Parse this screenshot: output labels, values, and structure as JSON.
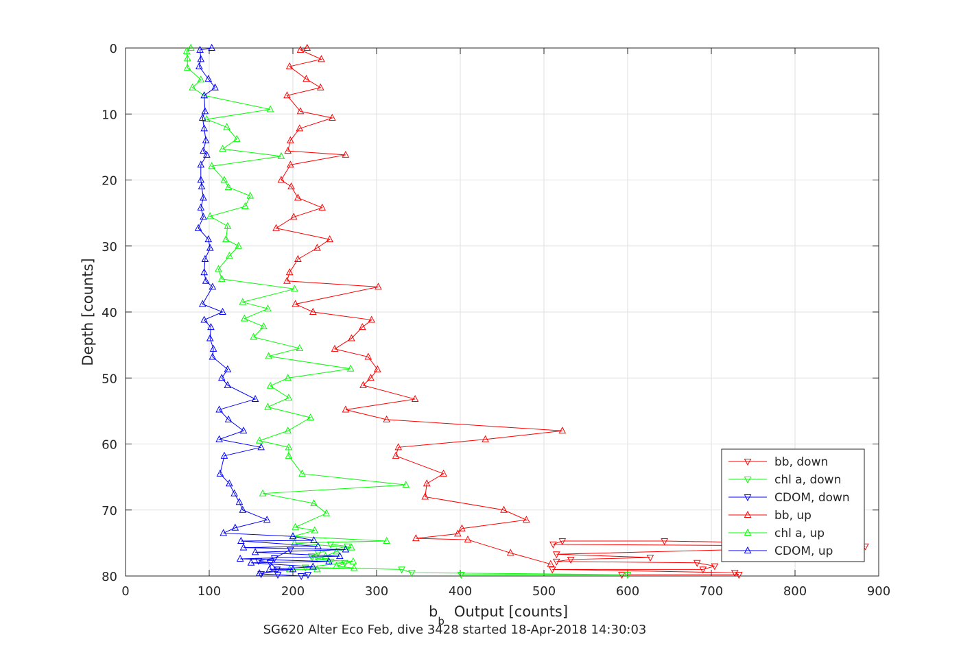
{
  "chart_data": {
    "type": "line",
    "xlabel_main": "b",
    "xlabel_sub": "b",
    "xlabel_rest": "Output [counts]",
    "ylabel": "Depth [counts]",
    "xlim": [
      0,
      900
    ],
    "ylim": [
      0,
      80
    ],
    "y_reversed": true,
    "grid": true,
    "legend_placement": "bottom-right",
    "xticks": [
      0,
      100,
      200,
      300,
      400,
      500,
      600,
      700,
      800,
      900
    ],
    "yticks": [
      0,
      10,
      20,
      30,
      40,
      50,
      60,
      70,
      80
    ],
    "series": [
      {
        "name": "bb, down",
        "color": "#ff0000",
        "marker": "triangle-down",
        "points": [
          [
            872,
            75.2
          ],
          [
            644,
            74.7
          ],
          [
            522,
            74.7
          ],
          [
            511,
            75.2
          ],
          [
            884,
            75.5
          ],
          [
            515,
            76.7
          ],
          [
            627,
            77.2
          ],
          [
            532,
            77.5
          ],
          [
            515,
            77.8
          ],
          [
            683,
            78.0
          ],
          [
            704,
            78.5
          ],
          [
            690,
            79.0
          ],
          [
            510,
            79.0
          ],
          [
            728,
            79.5
          ],
          [
            733,
            79.8
          ],
          [
            593,
            79.8
          ]
        ]
      },
      {
        "name": "chl a, down",
        "color": "#00ff00",
        "marker": "triangle-down",
        "points": [
          [
            245,
            75.2
          ],
          [
            265,
            75.5
          ],
          [
            230,
            76.5
          ],
          [
            222,
            77.0
          ],
          [
            245,
            77.8
          ],
          [
            262,
            78.0
          ],
          [
            215,
            78.7
          ],
          [
            330,
            79.0
          ],
          [
            342,
            79.5
          ],
          [
            600,
            79.8
          ],
          [
            401,
            79.8
          ]
        ]
      },
      {
        "name": "CDOM, down",
        "color": "#0000ff",
        "marker": "triangle-down",
        "points": [
          [
            197,
            76.0
          ],
          [
            178,
            77.3
          ],
          [
            159,
            77.7
          ],
          [
            173,
            78.0
          ],
          [
            181,
            79.0
          ],
          [
            162,
            79.7
          ],
          [
            182,
            79.8
          ],
          [
            210,
            80.0
          ],
          [
            218,
            79.8
          ]
        ]
      },
      {
        "name": "bb, up",
        "color": "#ff0000",
        "marker": "triangle-up",
        "points": [
          [
            217,
            0.0
          ],
          [
            209,
            0.3
          ],
          [
            234,
            1.7
          ],
          [
            196,
            2.8
          ],
          [
            216,
            4.7
          ],
          [
            233,
            6.0
          ],
          [
            193,
            7.2
          ],
          [
            209,
            9.6
          ],
          [
            247,
            10.6
          ],
          [
            208,
            12.2
          ],
          [
            197,
            14.0
          ],
          [
            194,
            15.6
          ],
          [
            263,
            16.2
          ],
          [
            197,
            17.7
          ],
          [
            186,
            20.0
          ],
          [
            198,
            21.0
          ],
          [
            206,
            22.7
          ],
          [
            235,
            24.2
          ],
          [
            201,
            25.6
          ],
          [
            180,
            27.3
          ],
          [
            244,
            29.0
          ],
          [
            229,
            30.3
          ],
          [
            206,
            32.0
          ],
          [
            196,
            34.0
          ],
          [
            193,
            35.3
          ],
          [
            302,
            36.2
          ],
          [
            203,
            38.8
          ],
          [
            224,
            40.0
          ],
          [
            294,
            41.2
          ],
          [
            283,
            42.3
          ],
          [
            270,
            44.0
          ],
          [
            250,
            45.6
          ],
          [
            290,
            46.8
          ],
          [
            301,
            48.7
          ],
          [
            293,
            50.0
          ],
          [
            284,
            51.1
          ],
          [
            346,
            53.2
          ],
          [
            263,
            54.8
          ],
          [
            312,
            56.3
          ],
          [
            522,
            58.0
          ],
          [
            430,
            59.3
          ],
          [
            326,
            60.5
          ],
          [
            323,
            61.8
          ],
          [
            380,
            64.5
          ],
          [
            360,
            66.0
          ],
          [
            358,
            68.0
          ],
          [
            452,
            70.0
          ],
          [
            479,
            71.5
          ],
          [
            402,
            72.8
          ],
          [
            397,
            73.6
          ],
          [
            347,
            74.3
          ],
          [
            409,
            74.5
          ],
          [
            460,
            76.5
          ],
          [
            508,
            78.2
          ]
        ]
      },
      {
        "name": "chl a, up",
        "color": "#00ff00",
        "marker": "triangle-up",
        "points": [
          [
            78,
            0.0
          ],
          [
            73,
            0.5
          ],
          [
            74,
            1.6
          ],
          [
            74,
            3.0
          ],
          [
            90,
            4.8
          ],
          [
            80,
            6.0
          ],
          [
            94,
            7.2
          ],
          [
            173,
            9.3
          ],
          [
            97,
            10.8
          ],
          [
            121,
            12.0
          ],
          [
            133,
            13.8
          ],
          [
            116,
            15.3
          ],
          [
            186,
            16.4
          ],
          [
            103,
            17.9
          ],
          [
            118,
            20.0
          ],
          [
            123,
            21.1
          ],
          [
            149,
            22.4
          ],
          [
            143,
            24.0
          ],
          [
            101,
            25.5
          ],
          [
            122,
            27.0
          ],
          [
            120,
            29.0
          ],
          [
            135,
            30.0
          ],
          [
            124,
            31.5
          ],
          [
            111,
            33.5
          ],
          [
            115,
            35.0
          ],
          [
            202,
            36.5
          ],
          [
            140,
            38.5
          ],
          [
            170,
            39.5
          ],
          [
            142,
            41.0
          ],
          [
            165,
            42.2
          ],
          [
            153,
            43.8
          ],
          [
            208,
            45.5
          ],
          [
            171,
            46.7
          ],
          [
            269,
            48.6
          ],
          [
            194,
            50.0
          ],
          [
            173,
            51.2
          ],
          [
            195,
            53.0
          ],
          [
            170,
            54.4
          ],
          [
            221,
            56.0
          ],
          [
            194,
            58.0
          ],
          [
            160,
            59.5
          ],
          [
            195,
            60.5
          ],
          [
            195,
            61.8
          ],
          [
            211,
            64.5
          ],
          [
            335,
            66.2
          ],
          [
            164,
            67.5
          ],
          [
            225,
            69.0
          ],
          [
            240,
            70.5
          ],
          [
            203,
            72.6
          ],
          [
            226,
            73.1
          ],
          [
            200,
            74.0
          ],
          [
            312,
            74.7
          ],
          [
            202,
            75.0
          ],
          [
            270,
            75.7
          ],
          [
            252,
            76.3
          ],
          [
            239,
            77.0
          ],
          [
            226,
            77.5
          ],
          [
            272,
            77.8
          ],
          [
            252,
            78.5
          ],
          [
            273,
            78.8
          ],
          [
            196,
            79.0
          ],
          [
            229,
            79.0
          ]
        ]
      },
      {
        "name": "CDOM, up",
        "color": "#0000ff",
        "marker": "triangle-up",
        "points": [
          [
            103,
            0.0
          ],
          [
            89,
            0.3
          ],
          [
            90,
            1.7
          ],
          [
            88,
            2.8
          ],
          [
            99,
            4.7
          ],
          [
            107,
            6.0
          ],
          [
            94,
            7.2
          ],
          [
            95,
            9.6
          ],
          [
            92,
            10.6
          ],
          [
            94,
            12.2
          ],
          [
            96,
            14.0
          ],
          [
            93,
            15.6
          ],
          [
            97,
            16.2
          ],
          [
            90,
            17.7
          ],
          [
            90,
            20.0
          ],
          [
            91,
            21.0
          ],
          [
            93,
            22.7
          ],
          [
            90,
            24.2
          ],
          [
            93,
            25.6
          ],
          [
            87,
            27.3
          ],
          [
            99,
            29.0
          ],
          [
            101,
            30.3
          ],
          [
            95,
            32.0
          ],
          [
            94,
            34.0
          ],
          [
            96,
            35.3
          ],
          [
            104,
            36.2
          ],
          [
            92,
            38.8
          ],
          [
            116,
            40.0
          ],
          [
            94,
            41.2
          ],
          [
            102,
            42.3
          ],
          [
            101,
            44.0
          ],
          [
            105,
            45.6
          ],
          [
            104,
            46.8
          ],
          [
            122,
            48.7
          ],
          [
            115,
            50.0
          ],
          [
            122,
            51.1
          ],
          [
            155,
            53.2
          ],
          [
            112,
            54.8
          ],
          [
            123,
            56.3
          ],
          [
            141,
            58.0
          ],
          [
            112,
            59.3
          ],
          [
            162,
            60.5
          ],
          [
            118,
            61.8
          ],
          [
            113,
            64.5
          ],
          [
            124,
            66.0
          ],
          [
            130,
            67.5
          ],
          [
            136,
            68.8
          ],
          [
            140,
            70.0
          ],
          [
            169,
            71.5
          ],
          [
            131,
            72.7
          ],
          [
            117,
            73.5
          ],
          [
            200,
            74.0
          ],
          [
            225,
            74.6
          ],
          [
            138,
            74.7
          ],
          [
            230,
            75.5
          ],
          [
            141,
            75.7
          ],
          [
            263,
            76.0
          ],
          [
            155,
            76.4
          ],
          [
            256,
            77.0
          ],
          [
            137,
            77.4
          ],
          [
            243,
            77.8
          ],
          [
            150,
            78.0
          ],
          [
            224,
            78.6
          ],
          [
            172,
            79.0
          ],
          [
            200,
            79.0
          ],
          [
            160,
            79.6
          ]
        ]
      }
    ]
  },
  "footer": {
    "caption": "SG620 Alter Eco Feb, dive 3428 started 18-Apr-2018 14:30:03"
  }
}
